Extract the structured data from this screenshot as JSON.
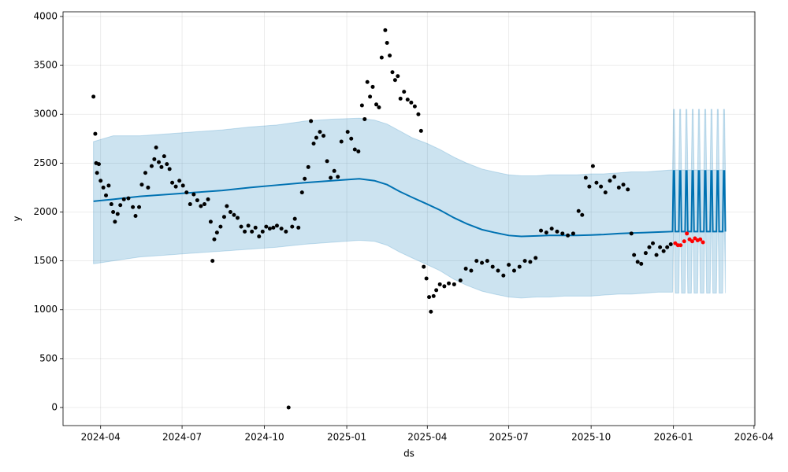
{
  "chart_data": {
    "type": "line",
    "x_label": "ds",
    "y_label": "y",
    "xlim": [
      "2024-02-19",
      "2026-04-02"
    ],
    "ylim": [
      -185,
      4048
    ],
    "xticks": [
      "2024-04",
      "2024-07",
      "2024-10",
      "2025-01",
      "2025-04",
      "2025-07",
      "2025-10",
      "2026-01",
      "2026-04"
    ],
    "yticks": [
      0,
      500,
      1000,
      1500,
      2000,
      2500,
      3000,
      3500,
      4000
    ],
    "grid": true,
    "series": [
      {
        "type": "line",
        "color": "#0072b2",
        "band_color": "#0072b2",
        "x": [
          "2024-03-24",
          "2024-04-15",
          "2024-05-15",
          "2024-06-15",
          "2024-07-15",
          "2024-08-15",
          "2024-09-15",
          "2024-10-15",
          "2024-11-15",
          "2024-12-15",
          "2025-01-15",
          "2025-02-01",
          "2025-02-15",
          "2025-03-01",
          "2025-03-15",
          "2025-04-01",
          "2025-04-15",
          "2025-05-01",
          "2025-05-15",
          "2025-06-01",
          "2025-06-15",
          "2025-07-01",
          "2025-07-15",
          "2025-08-01",
          "2025-08-15",
          "2025-09-01",
          "2025-09-15",
          "2025-10-01",
          "2025-10-15",
          "2025-11-01",
          "2025-11-15",
          "2025-12-01",
          "2025-12-15",
          "2025-12-31",
          "2026-01-01",
          "2026-01-02",
          "2026-01-03",
          "2026-01-07",
          "2026-01-08",
          "2026-01-09",
          "2026-01-10",
          "2026-01-14",
          "2026-01-15",
          "2026-01-16",
          "2026-01-17",
          "2026-01-21",
          "2026-01-22",
          "2026-01-23",
          "2026-01-24",
          "2026-01-28",
          "2026-01-29",
          "2026-01-30",
          "2026-01-31",
          "2026-02-04",
          "2026-02-05",
          "2026-02-06",
          "2026-02-07",
          "2026-02-11",
          "2026-02-12",
          "2026-02-13",
          "2026-02-14",
          "2026-02-18",
          "2026-02-19",
          "2026-02-20",
          "2026-02-21",
          "2026-02-25",
          "2026-02-26",
          "2026-02-27",
          "2026-02-28"
        ],
        "values": [
          2110,
          2130,
          2160,
          2180,
          2200,
          2220,
          2250,
          2275,
          2300,
          2320,
          2340,
          2320,
          2280,
          2210,
          2150,
          2080,
          2020,
          1940,
          1880,
          1820,
          1790,
          1760,
          1750,
          1755,
          1760,
          1760,
          1760,
          1765,
          1770,
          1780,
          1785,
          1790,
          1795,
          1800,
          2420,
          2420,
          1800,
          1800,
          2420,
          2420,
          1800,
          1800,
          2420,
          2420,
          1800,
          1800,
          2420,
          2420,
          1800,
          1800,
          2420,
          2420,
          1800,
          1800,
          2420,
          2420,
          1800,
          1800,
          2420,
          2420,
          1800,
          1800,
          2420,
          2420,
          1800,
          1800,
          2420,
          2420,
          1800
        ],
        "upper": [
          2720,
          2780,
          2780,
          2800,
          2820,
          2840,
          2870,
          2890,
          2930,
          2950,
          2960,
          2940,
          2900,
          2830,
          2760,
          2700,
          2640,
          2560,
          2500,
          2440,
          2410,
          2380,
          2370,
          2370,
          2380,
          2380,
          2380,
          2390,
          2390,
          2400,
          2410,
          2410,
          2420,
          2430,
          3050,
          3050,
          2430,
          2430,
          3050,
          3050,
          2430,
          2430,
          3050,
          3050,
          2430,
          2430,
          3050,
          3050,
          2430,
          2430,
          3050,
          3050,
          2430,
          2430,
          3050,
          3050,
          2430,
          2430,
          3050,
          3050,
          2430,
          2430,
          3050,
          3050,
          2430,
          2430,
          3050,
          3050,
          2430
        ],
        "lower": [
          1470,
          1500,
          1540,
          1560,
          1580,
          1600,
          1620,
          1640,
          1670,
          1690,
          1710,
          1700,
          1660,
          1590,
          1530,
          1460,
          1400,
          1310,
          1250,
          1190,
          1160,
          1130,
          1120,
          1130,
          1130,
          1140,
          1140,
          1140,
          1150,
          1160,
          1160,
          1170,
          1180,
          1180,
          1800,
          1800,
          1170,
          1170,
          1800,
          1800,
          1170,
          1170,
          1800,
          1800,
          1170,
          1170,
          1800,
          1800,
          1170,
          1170,
          1800,
          1800,
          1170,
          1170,
          1800,
          1800,
          1170,
          1170,
          1800,
          1800,
          1170,
          1170,
          1800,
          1800,
          1170,
          1170,
          1800,
          1800,
          1170
        ]
      },
      {
        "type": "scatter",
        "color": "#000000",
        "x": [
          "2024-03-24",
          "2024-03-26",
          "2024-03-27",
          "2024-03-28",
          "2024-03-30",
          "2024-04-01",
          "2024-04-04",
          "2024-04-07",
          "2024-04-10",
          "2024-04-13",
          "2024-04-15",
          "2024-04-17",
          "2024-04-20",
          "2024-04-23",
          "2024-04-27",
          "2024-05-02",
          "2024-05-07",
          "2024-05-10",
          "2024-05-14",
          "2024-05-17",
          "2024-05-21",
          "2024-05-24",
          "2024-05-28",
          "2024-05-31",
          "2024-06-02",
          "2024-06-05",
          "2024-06-08",
          "2024-06-11",
          "2024-06-14",
          "2024-06-17",
          "2024-06-20",
          "2024-06-24",
          "2024-06-28",
          "2024-07-02",
          "2024-07-06",
          "2024-07-10",
          "2024-07-14",
          "2024-07-18",
          "2024-07-22",
          "2024-07-26",
          "2024-07-30",
          "2024-08-02",
          "2024-08-04",
          "2024-08-06",
          "2024-08-09",
          "2024-08-13",
          "2024-08-17",
          "2024-08-20",
          "2024-08-24",
          "2024-08-28",
          "2024-09-01",
          "2024-09-05",
          "2024-09-09",
          "2024-09-13",
          "2024-09-17",
          "2024-09-21",
          "2024-09-25",
          "2024-09-29",
          "2024-10-03",
          "2024-10-07",
          "2024-10-11",
          "2024-10-15",
          "2024-10-20",
          "2024-10-25",
          "2024-10-28",
          "2024-11-01",
          "2024-11-04",
          "2024-11-08",
          "2024-11-12",
          "2024-11-15",
          "2024-11-19",
          "2024-11-22",
          "2024-11-25",
          "2024-11-28",
          "2024-12-02",
          "2024-12-06",
          "2024-12-10",
          "2024-12-14",
          "2024-12-18",
          "2024-12-22",
          "2024-12-26",
          "2025-01-02",
          "2025-01-06",
          "2025-01-10",
          "2025-01-14",
          "2025-01-18",
          "2025-01-21",
          "2025-01-24",
          "2025-01-27",
          "2025-01-30",
          "2025-02-03",
          "2025-02-06",
          "2025-02-09",
          "2025-02-13",
          "2025-02-15",
          "2025-02-18",
          "2025-02-21",
          "2025-02-24",
          "2025-02-27",
          "2025-03-02",
          "2025-03-06",
          "2025-03-10",
          "2025-03-14",
          "2025-03-18",
          "2025-03-22",
          "2025-03-25",
          "2025-03-28",
          "2025-03-31",
          "2025-04-03",
          "2025-04-05",
          "2025-04-08",
          "2025-04-11",
          "2025-04-15",
          "2025-04-20",
          "2025-04-25",
          "2025-05-01",
          "2025-05-08",
          "2025-05-14",
          "2025-05-20",
          "2025-05-26",
          "2025-06-01",
          "2025-06-07",
          "2025-06-13",
          "2025-06-19",
          "2025-06-25",
          "2025-07-01",
          "2025-07-07",
          "2025-07-13",
          "2025-07-19",
          "2025-07-25",
          "2025-07-31",
          "2025-08-06",
          "2025-08-12",
          "2025-08-18",
          "2025-08-24",
          "2025-08-30",
          "2025-09-05",
          "2025-09-11",
          "2025-09-17",
          "2025-09-21",
          "2025-09-25",
          "2025-09-29",
          "2025-10-03",
          "2025-10-07",
          "2025-10-12",
          "2025-10-17",
          "2025-10-22",
          "2025-10-27",
          "2025-11-01",
          "2025-11-06",
          "2025-11-11",
          "2025-11-15",
          "2025-11-18",
          "2025-11-22",
          "2025-11-26",
          "2025-12-01",
          "2025-12-05",
          "2025-12-09",
          "2025-12-13",
          "2025-12-17",
          "2025-12-21",
          "2025-12-25",
          "2025-12-29"
        ],
        "values": [
          3180,
          2800,
          2500,
          2400,
          2490,
          2320,
          2250,
          2170,
          2270,
          2080,
          2000,
          1900,
          1980,
          2070,
          2130,
          2140,
          2050,
          1960,
          2050,
          2280,
          2400,
          2250,
          2470,
          2540,
          2660,
          2510,
          2460,
          2570,
          2490,
          2440,
          2300,
          2260,
          2320,
          2270,
          2200,
          2080,
          2180,
          2120,
          2060,
          2080,
          2130,
          1900,
          1500,
          1720,
          1790,
          1850,
          1950,
          2060,
          2000,
          1970,
          1940,
          1850,
          1800,
          1860,
          1800,
          1840,
          1750,
          1800,
          1850,
          1830,
          1840,
          1860,
          1830,
          1800,
          0,
          1850,
          1930,
          1840,
          2200,
          2340,
          2460,
          2930,
          2700,
          2760,
          2820,
          2780,
          2520,
          2350,
          2420,
          2360,
          2720,
          2820,
          2750,
          2640,
          2620,
          3090,
          2950,
          3330,
          3180,
          3280,
          3100,
          3070,
          3580,
          3860,
          3730,
          3600,
          3430,
          3350,
          3390,
          3160,
          3230,
          3150,
          3120,
          3080,
          3000,
          2830,
          1440,
          1320,
          1130,
          980,
          1140,
          1200,
          1260,
          1240,
          1270,
          1260,
          1300,
          1420,
          1400,
          1500,
          1480,
          1500,
          1440,
          1400,
          1350,
          1460,
          1400,
          1440,
          1500,
          1490,
          1530,
          1810,
          1790,
          1830,
          1800,
          1780,
          1760,
          1780,
          2010,
          1970,
          2350,
          2260,
          2470,
          2300,
          2260,
          2200,
          2320,
          2360,
          2250,
          2280,
          2230,
          1780,
          1560,
          1490,
          1470,
          1580,
          1640,
          1680,
          1560,
          1640,
          1600,
          1640,
          1670
        ]
      },
      {
        "type": "scatter",
        "color": "#ff0000",
        "x": [
          "2026-01-03",
          "2026-01-06",
          "2026-01-09",
          "2026-01-13",
          "2026-01-16",
          "2026-01-19",
          "2026-01-22",
          "2026-01-25",
          "2026-01-28",
          "2026-01-31",
          "2026-02-03"
        ],
        "values": [
          1680,
          1660,
          1660,
          1700,
          1780,
          1720,
          1700,
          1730,
          1710,
          1720,
          1690
        ]
      }
    ]
  }
}
